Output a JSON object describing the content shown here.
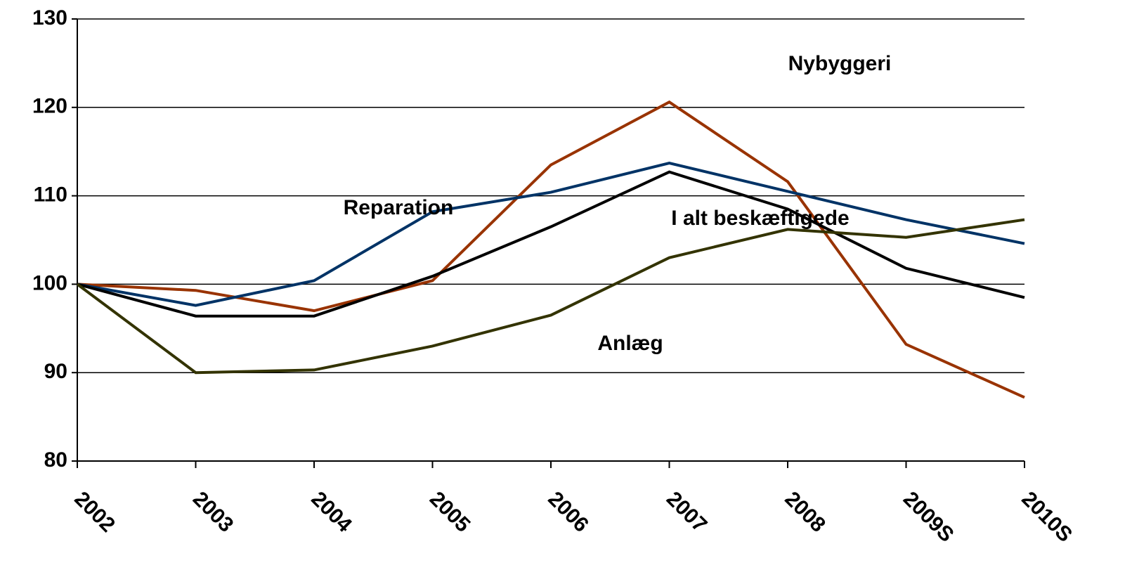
{
  "chart_data": {
    "type": "line",
    "categories": [
      "2002",
      "2003",
      "2004",
      "2005",
      "2006",
      "2007",
      "2008",
      "2009S",
      "2010S"
    ],
    "series": [
      {
        "name": "Nybyggeri",
        "color": "#993300",
        "values": [
          100,
          99.3,
          97.0,
          100.4,
          113.5,
          120.6,
          111.6,
          93.2,
          87.2
        ]
      },
      {
        "name": "Reparation",
        "color": "#003366",
        "values": [
          100,
          97.6,
          100.4,
          108.2,
          110.4,
          113.7,
          110.5,
          107.3,
          104.6
        ]
      },
      {
        "name": "I alt beskæftigede",
        "color": "#000000",
        "values": [
          100,
          96.4,
          96.4,
          100.9,
          106.5,
          112.7,
          108.5,
          101.8,
          98.5
        ]
      },
      {
        "name": "Anlæg",
        "color": "#333300",
        "values": [
          100,
          90.0,
          90.3,
          93.0,
          96.5,
          103.0,
          106.2,
          105.3,
          107.3
        ]
      }
    ],
    "ylim": [
      80,
      130
    ],
    "yticks": [
      80,
      90,
      100,
      110,
      120,
      130
    ],
    "grid": true
  }
}
